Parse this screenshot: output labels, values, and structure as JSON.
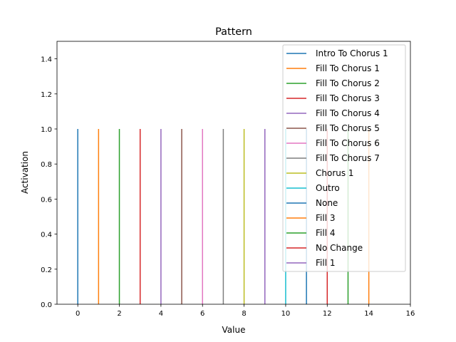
{
  "chart_data": {
    "type": "line",
    "title": "Pattern",
    "xlabel": "Value",
    "ylabel": "Activation",
    "xlim": [
      -1,
      16
    ],
    "ylim": [
      0,
      1.5
    ],
    "xticks": [
      0,
      2,
      4,
      6,
      8,
      10,
      12,
      14,
      16
    ],
    "xtick_labels": [
      "0",
      "2",
      "4",
      "6",
      "8",
      "10",
      "12",
      "14",
      "16"
    ],
    "yticks": [
      0,
      0.2,
      0.4,
      0.6,
      0.8,
      1.0,
      1.2,
      1.4
    ],
    "ytick_labels": [
      "0.0",
      "0.2",
      "0.4",
      "0.6",
      "0.8",
      "1.0",
      "1.2",
      "1.4"
    ],
    "grid": false,
    "legend_position": "top-right",
    "series": [
      {
        "name": "Intro To Chorus 1",
        "x": 0,
        "y": [
          0,
          1
        ],
        "color": "#1f77b4"
      },
      {
        "name": "Fill To Chorus 1",
        "x": 1,
        "y": [
          0,
          1
        ],
        "color": "#ff7f0e"
      },
      {
        "name": "Fill To Chorus 2",
        "x": 2,
        "y": [
          0,
          1
        ],
        "color": "#2ca02c"
      },
      {
        "name": "Fill To Chorus 3",
        "x": 3,
        "y": [
          0,
          1
        ],
        "color": "#d62728"
      },
      {
        "name": "Fill To Chorus 4",
        "x": 4,
        "y": [
          0,
          1
        ],
        "color": "#9467bd"
      },
      {
        "name": "Fill To Chorus 5",
        "x": 5,
        "y": [
          0,
          1
        ],
        "color": "#8c564b"
      },
      {
        "name": "Fill To Chorus 6",
        "x": 6,
        "y": [
          0,
          1
        ],
        "color": "#e377c2"
      },
      {
        "name": "Fill To Chorus 7",
        "x": 7,
        "y": [
          0,
          1
        ],
        "color": "#7f7f7f"
      },
      {
        "name": "Chorus 1",
        "x": 8,
        "y": [
          0,
          1
        ],
        "color": "#bcbd22"
      },
      {
        "name": "Outro",
        "x": 10,
        "y": [
          0,
          1
        ],
        "color": "#17becf"
      },
      {
        "name": "None",
        "x": 11,
        "y": [
          0,
          1
        ],
        "color": "#1f77b4"
      },
      {
        "name": "Fill 3",
        "x": 14,
        "y": [
          0,
          1
        ],
        "color": "#ff7f0e"
      },
      {
        "name": "Fill 4",
        "x": 13,
        "y": [
          0,
          1
        ],
        "color": "#2ca02c"
      },
      {
        "name": "No Change",
        "x": 12,
        "y": [
          0,
          1
        ],
        "color": "#d62728"
      },
      {
        "name": "Fill 1",
        "x": 9,
        "y": [
          0,
          1
        ],
        "color": "#9467bd"
      }
    ]
  }
}
